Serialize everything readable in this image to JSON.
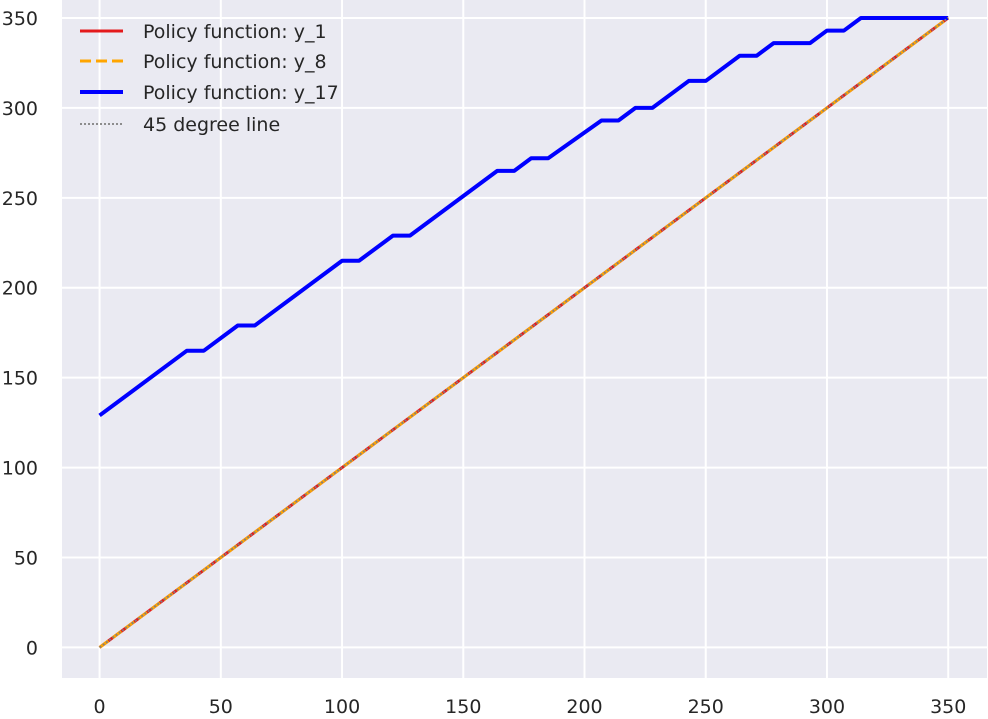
{
  "chart_data": {
    "type": "line",
    "title": "",
    "xlabel": "",
    "ylabel": "",
    "xlim": [
      -15.5,
      366
    ],
    "ylim": [
      -17,
      360
    ],
    "xticks": [
      0,
      50,
      100,
      150,
      200,
      250,
      300,
      350
    ],
    "yticks": [
      0,
      50,
      100,
      150,
      200,
      250,
      300,
      350
    ],
    "grid": true,
    "legend_placement": "top-left",
    "background": "#eaeaf2",
    "series": [
      {
        "name": "Policy function: y_1",
        "color": "#e41a1c",
        "style": "solid",
        "x": [
          0,
          350
        ],
        "y": [
          0,
          350
        ]
      },
      {
        "name": "Policy function: y_8",
        "color": "#ffa500",
        "style": "dashed",
        "x": [
          0,
          350
        ],
        "y": [
          0,
          350
        ]
      },
      {
        "name": "Policy function: y_17",
        "color": "#0000ff",
        "style": "solid",
        "x": [
          0,
          36,
          43,
          57,
          64,
          100,
          107,
          121,
          128,
          164,
          171,
          178,
          185,
          207,
          214,
          221,
          228,
          243,
          250,
          264,
          271,
          278,
          293,
          300,
          307,
          314,
          350
        ],
        "y": [
          129,
          165,
          165,
          179,
          179,
          215,
          215,
          229,
          229,
          265,
          265,
          272,
          272,
          293,
          293,
          300,
          300,
          315,
          315,
          329,
          329,
          336,
          336,
          343,
          343,
          350,
          350
        ]
      },
      {
        "name": "45 degree line",
        "color": "#7f7f7f",
        "style": "dotted",
        "x": [
          0,
          350
        ],
        "y": [
          0,
          350
        ]
      }
    ]
  }
}
